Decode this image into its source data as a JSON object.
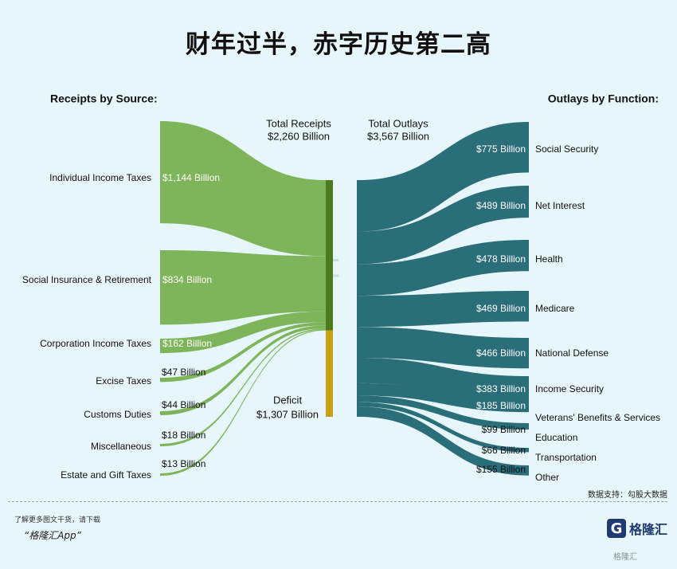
{
  "title": "财年过半，赤字历史第二高",
  "footer": {
    "promo": "了解更多图文干货，请下载",
    "app": "“格隆汇App”",
    "logo_text": "格隆汇",
    "logo_mark": "G",
    "corner_watermark": "格隆汇",
    "source": "数据支持：勾股大数据"
  },
  "watermark": {
    "brand": "格隆汇",
    "partner": "勾股大数据"
  },
  "colors": {
    "receipts": "#7fb55a",
    "receipts_bar": "#4c7a1e",
    "deficit": "#c8a016",
    "outlays": "#2a6e7a",
    "background": "#e6f6fb"
  },
  "chart_data": {
    "type": "sankey",
    "units": "Billion",
    "left_heading": "Receipts by Source:",
    "right_heading": "Outlays by Function:",
    "totals": {
      "receipts": {
        "label": "Total Receipts",
        "value": "$2,260 Billion"
      },
      "outlays": {
        "label": "Total Outlays",
        "value": "$3,567 Billion"
      },
      "deficit": {
        "label": "Deficit",
        "value": "$1,307 Billion"
      }
    },
    "receipts": [
      {
        "name": "Individual Income Taxes",
        "value": 1144,
        "label": "$1,144 Billion"
      },
      {
        "name": "Social Insurance & Retirement",
        "value": 834,
        "label": "$834 Billion"
      },
      {
        "name": "Corporation Income Taxes",
        "value": 162,
        "label": "$162 Billion"
      },
      {
        "name": "Excise Taxes",
        "value": 47,
        "label": "$47 Billion"
      },
      {
        "name": "Customs Duties",
        "value": 44,
        "label": "$44 Billion"
      },
      {
        "name": "Miscellaneous",
        "value": 18,
        "label": "$18 Billion"
      },
      {
        "name": "Estate and Gift Taxes",
        "value": 13,
        "label": "$13 Billion"
      }
    ],
    "outlays": [
      {
        "name": "Social Security",
        "value": 775,
        "label": "$775 Billion"
      },
      {
        "name": "Net Interest",
        "value": 489,
        "label": "$489 Billion"
      },
      {
        "name": "Health",
        "value": 478,
        "label": "$478 Billion"
      },
      {
        "name": "Medicare",
        "value": 469,
        "label": "$469 Billion"
      },
      {
        "name": "National Defense",
        "value": 466,
        "label": "$466 Billion"
      },
      {
        "name": "Income Security",
        "value": 383,
        "label": "$383 Billion"
      },
      {
        "name": "Veterans' Benefits & Services",
        "value": 185,
        "label": "$185 Billion"
      },
      {
        "name": "Education",
        "value": 99,
        "label": "$99 Billion"
      },
      {
        "name": "Transportation",
        "value": 66,
        "label": "$66 Billion"
      },
      {
        "name": "Other",
        "value": 155,
        "label": "$155 Billion"
      }
    ]
  }
}
